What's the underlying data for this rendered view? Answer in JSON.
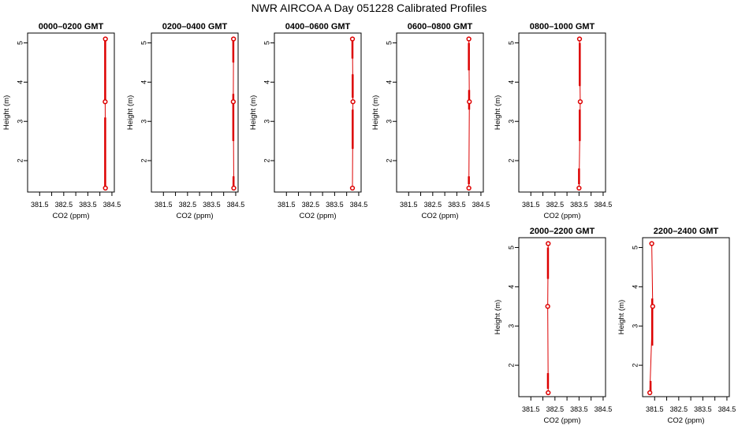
{
  "title": "NWR AIRCOA A  Day 051228  Calibrated Profiles",
  "colors": {
    "profile": "#dd0000",
    "frame": "#000000"
  },
  "chart_data": [
    {
      "type": "line",
      "title": "0000–0200 GMT",
      "xlabel": "CO2 (ppm)",
      "ylabel": "Height (m)",
      "xlim": [
        381.0,
        384.6
      ],
      "ylim": [
        1.2,
        5.25
      ],
      "xticks": [
        "381.5",
        "382.5",
        "383.5",
        "384.5"
      ],
      "yticks": [
        "2",
        "3",
        "4",
        "5"
      ],
      "series": [
        {
          "points": [
            {
              "x": 384.23,
              "y": 5.1
            },
            {
              "x": 384.22,
              "y": 3.5
            },
            {
              "x": 384.23,
              "y": 1.3
            }
          ]
        }
      ],
      "ranges": [
        {
          "y0": 5.1,
          "y1": 3.5,
          "x": 384.22
        },
        {
          "y0": 3.1,
          "y1": 1.3,
          "x": 384.22
        }
      ]
    },
    {
      "type": "line",
      "title": "0200–0400 GMT",
      "xlabel": "CO2 (ppm)",
      "ylabel": "Height (m)",
      "xlim": [
        381.0,
        384.6
      ],
      "ylim": [
        1.2,
        5.25
      ],
      "xticks": [
        "381.5",
        "382.5",
        "383.5",
        "384.5"
      ],
      "yticks": [
        "2",
        "3",
        "4",
        "5"
      ],
      "series": [
        {
          "points": [
            {
              "x": 384.41,
              "y": 5.1
            },
            {
              "x": 384.4,
              "y": 3.5
            },
            {
              "x": 384.42,
              "y": 1.3
            }
          ]
        }
      ],
      "ranges": [
        {
          "y0": 5.1,
          "y1": 4.5,
          "x": 384.4
        },
        {
          "y0": 3.7,
          "y1": 2.5,
          "x": 384.4
        },
        {
          "y0": 1.6,
          "y1": 1.3,
          "x": 384.41
        }
      ]
    },
    {
      "type": "line",
      "title": "0400–0600 GMT",
      "xlabel": "CO2 (ppm)",
      "ylabel": "Height (m)",
      "xlim": [
        381.0,
        384.6
      ],
      "ylim": [
        1.2,
        5.25
      ],
      "xticks": [
        "381.5",
        "382.5",
        "383.5",
        "384.5"
      ],
      "yticks": [
        "2",
        "3",
        "4",
        "5"
      ],
      "series": [
        {
          "points": [
            {
              "x": 384.24,
              "y": 5.1
            },
            {
              "x": 384.26,
              "y": 3.5
            },
            {
              "x": 384.24,
              "y": 1.3
            }
          ]
        }
      ],
      "ranges": [
        {
          "y0": 5.1,
          "y1": 4.6,
          "x": 384.24
        },
        {
          "y0": 4.2,
          "y1": 3.6,
          "x": 384.25
        },
        {
          "y0": 3.3,
          "y1": 2.3,
          "x": 384.25
        }
      ]
    },
    {
      "type": "line",
      "title": "0600–0800 GMT",
      "xlabel": "CO2 (ppm)",
      "ylabel": "Height (m)",
      "xlim": [
        381.0,
        384.6
      ],
      "ylim": [
        1.2,
        5.25
      ],
      "xticks": [
        "381.5",
        "382.5",
        "383.5",
        "384.5"
      ],
      "yticks": [
        "2",
        "3",
        "4",
        "5"
      ],
      "series": [
        {
          "points": [
            {
              "x": 384.0,
              "y": 5.1
            },
            {
              "x": 384.02,
              "y": 3.5
            },
            {
              "x": 384.0,
              "y": 1.3
            }
          ]
        }
      ],
      "ranges": [
        {
          "y0": 5.0,
          "y1": 4.3,
          "x": 384.0
        },
        {
          "y0": 3.8,
          "y1": 3.3,
          "x": 384.01
        },
        {
          "y0": 1.6,
          "y1": 1.4,
          "x": 384.0
        }
      ]
    },
    {
      "type": "line",
      "title": "0800–1000 GMT",
      "xlabel": "CO2 (ppm)",
      "ylabel": "Height (m)",
      "xlim": [
        381.0,
        384.6
      ],
      "ylim": [
        1.2,
        5.25
      ],
      "xticks": [
        "381.5",
        "382.5",
        "383.5",
        "384.5"
      ],
      "yticks": [
        "2",
        "3",
        "4",
        "5"
      ],
      "series": [
        {
          "points": [
            {
              "x": 383.52,
              "y": 5.1
            },
            {
              "x": 383.55,
              "y": 3.5
            },
            {
              "x": 383.5,
              "y": 1.3
            }
          ]
        }
      ],
      "ranges": [
        {
          "y0": 5.0,
          "y1": 3.9,
          "x": 383.53
        },
        {
          "y0": 3.3,
          "y1": 2.5,
          "x": 383.53
        },
        {
          "y0": 1.8,
          "y1": 1.4,
          "x": 383.5
        }
      ]
    },
    {
      "type": "line",
      "title": "2000–2200 GMT",
      "xlabel": "CO2 (ppm)",
      "ylabel": "Height (m)",
      "xlim": [
        381.0,
        384.6
      ],
      "ylim": [
        1.2,
        5.25
      ],
      "xticks": [
        "381.5",
        "382.5",
        "383.5",
        "384.5"
      ],
      "yticks": [
        "2",
        "3",
        "4",
        "5"
      ],
      "series": [
        {
          "points": [
            {
              "x": 382.22,
              "y": 5.1
            },
            {
              "x": 382.2,
              "y": 3.5
            },
            {
              "x": 382.22,
              "y": 1.3
            }
          ]
        }
      ],
      "ranges": [
        {
          "y0": 5.0,
          "y1": 4.2,
          "x": 382.21
        },
        {
          "y0": 1.8,
          "y1": 1.4,
          "x": 382.21
        }
      ]
    },
    {
      "type": "line",
      "title": "2200–2400 GMT",
      "xlabel": "CO2 (ppm)",
      "ylabel": "Height (m)",
      "xlim": [
        381.0,
        384.6
      ],
      "ylim": [
        1.2,
        5.25
      ],
      "xticks": [
        "381.5",
        "382.5",
        "383.5",
        "384.5"
      ],
      "yticks": [
        "2",
        "3",
        "4",
        "5"
      ],
      "series": [
        {
          "points": [
            {
              "x": 381.38,
              "y": 5.1
            },
            {
              "x": 381.42,
              "y": 3.5
            },
            {
              "x": 381.3,
              "y": 1.3
            }
          ]
        }
      ],
      "ranges": [
        {
          "y0": 3.7,
          "y1": 2.5,
          "x": 381.4
        },
        {
          "y0": 1.6,
          "y1": 1.3,
          "x": 381.33
        }
      ]
    }
  ]
}
